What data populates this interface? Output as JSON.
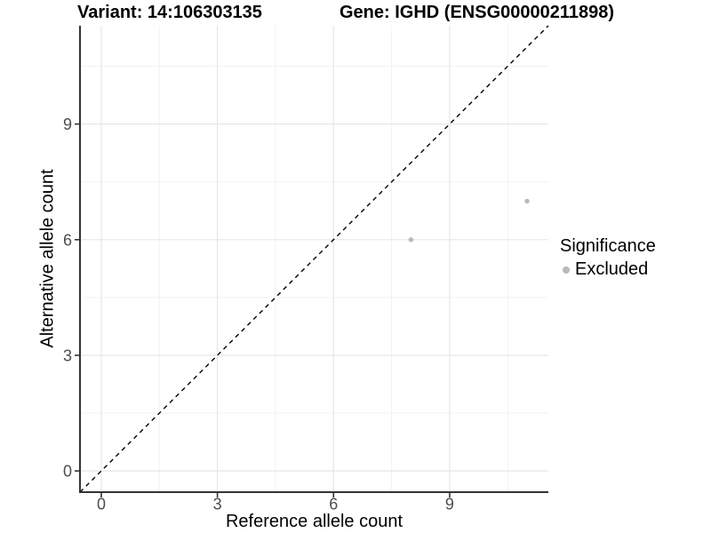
{
  "chart_data": {
    "type": "scatter",
    "title_variant": "Variant: 14:106303135",
    "title_gene": "Gene: IGHD (ENSG00000211898)",
    "xlabel": "Reference allele count",
    "ylabel": "Alternative allele count",
    "x_ticks": [
      0,
      3,
      6,
      9
    ],
    "y_ticks": [
      0,
      3,
      6,
      9
    ],
    "minor_breaks": [
      1.5,
      4.5,
      7.5,
      10.5
    ],
    "xlim": [
      -0.55,
      11.55
    ],
    "ylim": [
      -0.55,
      11.55
    ],
    "grid": true,
    "identity_line": {
      "slope": 1,
      "intercept": 0,
      "style": "dashed",
      "color": "#000000"
    },
    "series": [
      {
        "name": "Excluded",
        "points": [
          {
            "x": 8,
            "y": 6
          },
          {
            "x": 11,
            "y": 7
          }
        ]
      }
    ],
    "legend": {
      "title": "Significance",
      "position": "right",
      "items": [
        {
          "label": "Excluded",
          "marker": "circle",
          "color": "#b9b9b9"
        }
      ]
    },
    "colors": {
      "point_excluded": "#b9b9b9",
      "grid_major": "#e6e6e6",
      "grid_minor": "#f2f2f2",
      "axis_line": "#333333",
      "tick_label": "#4d4d4d",
      "background": "#ffffff"
    }
  }
}
